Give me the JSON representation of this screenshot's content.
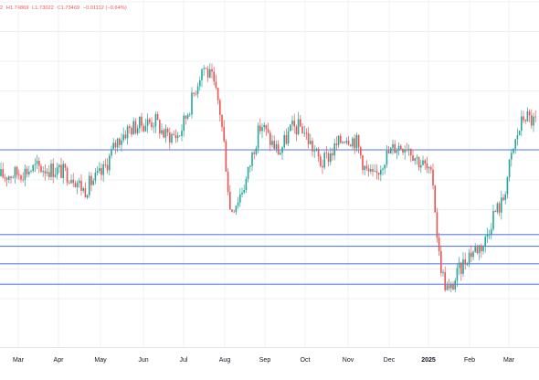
{
  "legend": {
    "prefix": "2",
    "high": "H1.74869",
    "low": "L1.73022",
    "close": "C1.73469",
    "change": "−0.01112 (−0.64%)"
  },
  "colors": {
    "up": "#26a69a",
    "down": "#ef5350",
    "level_line": "#5b7fe8",
    "grid": "#eef0f5",
    "axis_text": "#131722"
  },
  "chart_data": {
    "type": "candlestick",
    "title": "",
    "xlabel": "",
    "ylabel": "",
    "y_axis_visible": false,
    "grid": true,
    "x_ticks": [
      "Mar",
      "Apr",
      "May",
      "Jun",
      "Jul",
      "Aug",
      "Sep",
      "Oct",
      "Nov",
      "Dec",
      "2025",
      "Feb",
      "Mar"
    ],
    "approx_close_path": [
      {
        "period": "Mar",
        "close": 0.46
      },
      {
        "period": "Apr",
        "close": 0.48
      },
      {
        "period": "May",
        "close": 0.43
      },
      {
        "period": "late May",
        "close": 0.63
      },
      {
        "period": "Jun",
        "close": 0.64
      },
      {
        "period": "Jul",
        "close": 0.66
      },
      {
        "period": "mid Jul",
        "close": 0.87
      },
      {
        "period": "Aug",
        "close": 0.31
      },
      {
        "period": "Sep",
        "close": 0.62
      },
      {
        "period": "Oct",
        "close": 0.55
      },
      {
        "period": "Nov",
        "close": 0.53
      },
      {
        "period": "Dec",
        "close": 0.57
      },
      {
        "period": "2025",
        "close": 0.02
      },
      {
        "period": "Feb",
        "close": 0.15
      },
      {
        "period": "Mar",
        "close": 0.75
      }
    ],
    "note_scale": "relative 0-1 price scale; axis values are not printed",
    "horizontal_levels": [
      0.55,
      0.26,
      0.22,
      0.16,
      0.09
    ]
  }
}
